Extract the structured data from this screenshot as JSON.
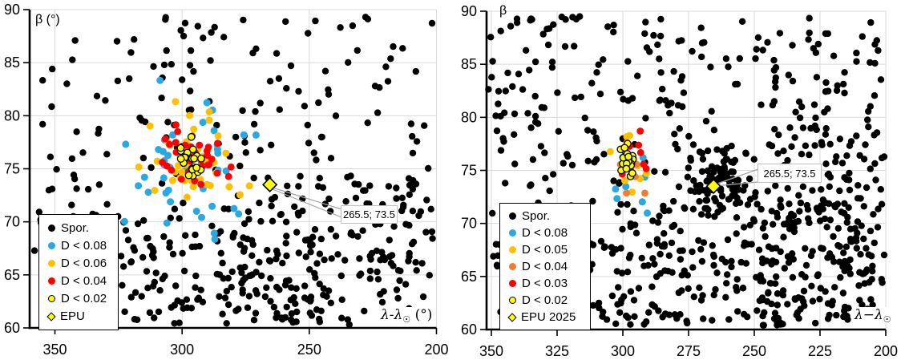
{
  "style": {
    "background": "#FFFFFF",
    "grid_color": "#D9D9D9",
    "axis_color": "#000000",
    "tick_label_color": "#000000",
    "callout_border_color": "#BFBFBF",
    "leader_line_color": "#A6A6A6",
    "spor_color": "#000000",
    "blue_color": "#29A8E2",
    "gold_color": "#FFC000",
    "orange_color": "#ED7D31",
    "red_color": "#FF0000",
    "yellow_color": "#FFFF00",
    "epu_fill": "#FFFF00"
  },
  "chart_data": [
    {
      "type": "scatter",
      "title": "",
      "x_axis": {
        "label": "λ-λ☉ (°)",
        "label_main": "λ-λ",
        "label_sub": "☉",
        "label_suffix": " (°)",
        "min": 200,
        "max": 360,
        "reversed": true,
        "ticks": [
          350,
          300,
          250,
          200
        ],
        "grid": true
      },
      "y_axis": {
        "label": "β (°)",
        "label_main": "β",
        "label_suffix": " (°)",
        "min": 60,
        "max": 90,
        "ticks": [
          90,
          85,
          80,
          75,
          70,
          65,
          60
        ],
        "grid": true
      },
      "legend_position": "bottom-left",
      "annotation": {
        "text": "265.5; 73.5",
        "x": 265.5,
        "y": 73.5
      },
      "series": [
        {
          "name": "Spor.",
          "marker": "circle",
          "color": "#000000",
          "r": 4.2,
          "seed": 101,
          "gen": [
            {
              "type": "uniform",
              "n": 255,
              "x": [
                201,
                359
              ],
              "y": [
                60.4,
                89.5
              ]
            },
            {
              "type": "uniform",
              "n": 120,
              "x": [
                200.5,
                280
              ],
              "y": [
                60.3,
                74
              ]
            },
            {
              "type": "uniform",
              "n": 90,
              "x": [
                240,
                330
              ],
              "y": [
                60.3,
                69
              ]
            },
            {
              "type": "uniform",
              "n": 20,
              "x": [
                300,
                358
              ],
              "y": [
                60.4,
                75
              ]
            }
          ]
        },
        {
          "name": "D < 0.08",
          "marker": "circle",
          "color": "#29A8E2",
          "r": 4.5,
          "seed": 202,
          "gen": [
            {
              "type": "gauss",
              "n": 44,
              "cx": 297,
              "cy": 75.6,
              "sx": 13,
              "sy": 3.2
            }
          ]
        },
        {
          "name": "D < 0.06",
          "marker": "circle",
          "color": "#FFC000",
          "r": 4.5,
          "seed": 303,
          "gen": [
            {
              "type": "gauss",
              "n": 46,
              "cx": 297,
              "cy": 75.8,
              "sx": 8.5,
              "sy": 2.4
            }
          ]
        },
        {
          "name": "D < 0.04",
          "marker": "circle",
          "color": "#FF0000",
          "r": 4.4,
          "seed": 404,
          "gen": [
            {
              "type": "gauss",
              "n": 36,
              "cx": 296.5,
              "cy": 75.9,
              "sx": 5.2,
              "sy": 1.4
            }
          ]
        },
        {
          "name": "D < 0.02",
          "marker": "circle",
          "color": "#FFFF00",
          "stroke": "#000000",
          "r": 4.2,
          "seed": 505,
          "gen": [
            {
              "type": "gauss",
              "n": 21,
              "cx": 296.3,
              "cy": 75.9,
              "sx": 2.4,
              "sy": 0.85
            }
          ]
        },
        {
          "name": "EPU",
          "marker": "diamond",
          "color": "#FFFF00",
          "stroke": "#000000",
          "size": 8.5,
          "points": [
            [
              265.5,
              73.5
            ]
          ]
        }
      ]
    },
    {
      "type": "scatter",
      "title": "",
      "x_axis": {
        "label": "λ−λ☉",
        "label_main": "λ−λ",
        "label_sub": "☉",
        "label_suffix": "",
        "min": 200,
        "max": 350,
        "reversed": true,
        "ticks": [
          350,
          325,
          300,
          275,
          250,
          225,
          200
        ],
        "grid": true
      },
      "y_axis": {
        "label": "β",
        "label_main": "β",
        "label_suffix": "",
        "min": 60,
        "max": 90,
        "ticks": [
          90,
          85,
          80,
          75,
          70,
          65,
          60
        ],
        "grid": true
      },
      "legend_position": "bottom-left",
      "annotation": {
        "text": "265.5; 73.5",
        "x": 265.5,
        "y": 73.5
      },
      "series": [
        {
          "name": "Spor.",
          "marker": "circle",
          "color": "#000000",
          "r": 4.2,
          "seed": 111,
          "gen": [
            {
              "type": "uniform",
              "n": 430,
              "x": [
                200.6,
                351.4
              ],
              "y": [
                60.4,
                89.5
              ]
            },
            {
              "type": "uniform",
              "n": 180,
              "x": [
                205,
                305
              ],
              "y": [
                60.3,
                72
              ]
            },
            {
              "type": "gauss",
              "n": 70,
              "cx": 264.5,
              "cy": 73.9,
              "sx": 5.5,
              "sy": 1.7
            },
            {
              "type": "uniform",
              "n": 110,
              "x": [
                200.6,
                258
              ],
              "y": [
                61,
                88
              ]
            }
          ]
        },
        {
          "name": "D < 0.08",
          "marker": "circle",
          "color": "#29A8E2",
          "r": 4.5,
          "seed": 212,
          "gen": [
            {
              "type": "gauss",
              "n": 9,
              "cx": 297,
              "cy": 75.3,
              "sx": 4.2,
              "sy": 2.6
            }
          ]
        },
        {
          "name": "D < 0.05",
          "marker": "circle",
          "color": "#FFC000",
          "r": 4.5,
          "seed": 313,
          "gen": [
            {
              "type": "gauss",
              "n": 10,
              "cx": 296.8,
              "cy": 75.4,
              "sx": 3.2,
              "sy": 1.7
            }
          ]
        },
        {
          "name": "D < 0.04",
          "marker": "circle",
          "color": "#ED7D31",
          "r": 4.4,
          "seed": 414,
          "gen": [
            {
              "type": "gauss",
              "n": 8,
              "cx": 297.3,
              "cy": 75.3,
              "sx": 2.8,
              "sy": 1.6
            }
          ]
        },
        {
          "name": "D < 0.03",
          "marker": "circle",
          "color": "#FF0000",
          "r": 4.4,
          "seed": 515,
          "gen": [
            {
              "type": "gauss",
              "n": 14,
              "cx": 297.4,
              "cy": 75.7,
              "sx": 3.2,
              "sy": 1.2
            }
          ]
        },
        {
          "name": "D < 0.02",
          "marker": "circle",
          "color": "#FFFF00",
          "stroke": "#000000",
          "r": 4.2,
          "seed": 616,
          "gen": [
            {
              "type": "gauss",
              "n": 26,
              "cx": 297.8,
              "cy": 75.8,
              "sx": 1.5,
              "sy": 0.55
            }
          ]
        },
        {
          "name": "EPU 2025",
          "marker": "diamond",
          "color": "#FFFF00",
          "stroke": "#000000",
          "size": 8.5,
          "points": [
            [
              265.5,
              73.5
            ]
          ]
        }
      ]
    }
  ]
}
